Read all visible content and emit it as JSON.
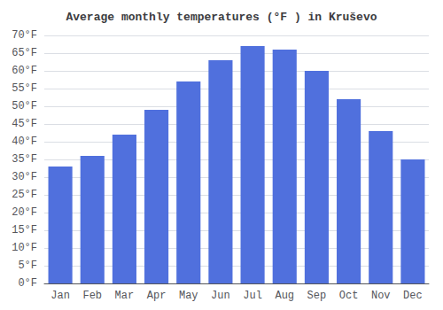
{
  "chart_data": {
    "type": "bar",
    "title": "Average monthly temperatures (°F ) in Kruševo",
    "categories": [
      "Jan",
      "Feb",
      "Mar",
      "Apr",
      "May",
      "Jun",
      "Jul",
      "Aug",
      "Sep",
      "Oct",
      "Nov",
      "Dec"
    ],
    "values": [
      33,
      36,
      42,
      49,
      57,
      63,
      67,
      66,
      60,
      52,
      43,
      35
    ],
    "ylim": [
      0,
      70
    ],
    "yticks": [
      {
        "value": 0,
        "label": "0°F"
      },
      {
        "value": 5,
        "label": "5°F"
      },
      {
        "value": 10,
        "label": "10°F"
      },
      {
        "value": 15,
        "label": "15°F"
      },
      {
        "value": 20,
        "label": "20°F"
      },
      {
        "value": 25,
        "label": "25°F"
      },
      {
        "value": 30,
        "label": "30°F"
      },
      {
        "value": 35,
        "label": "35°F"
      },
      {
        "value": 40,
        "label": "40°F"
      },
      {
        "value": 45,
        "label": "45°F"
      },
      {
        "value": 50,
        "label": "50°F"
      },
      {
        "value": 55,
        "label": "55°F"
      },
      {
        "value": 60,
        "label": "60°F"
      },
      {
        "value": 65,
        "label": "65°F"
      },
      {
        "value": 70,
        "label": "70°F"
      }
    ],
    "grid": true
  }
}
